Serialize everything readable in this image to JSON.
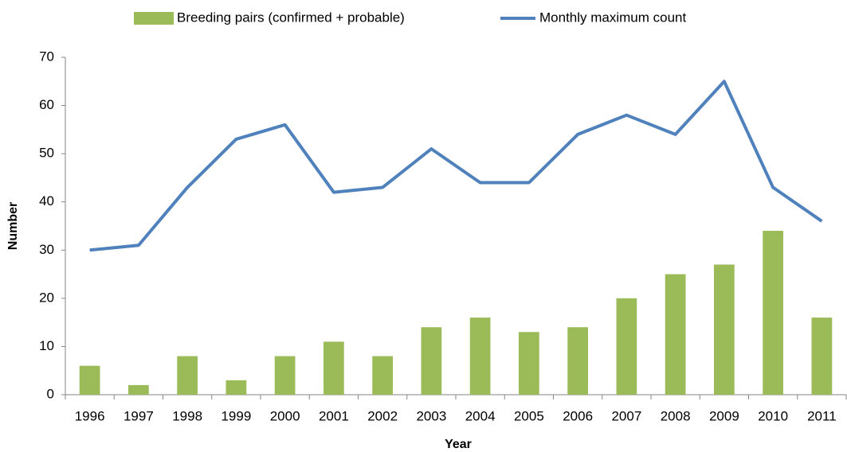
{
  "chart_data": {
    "type": "bar",
    "x_label": "Year",
    "y_label": "Number",
    "categories": [
      "1996",
      "1997",
      "1998",
      "1999",
      "2000",
      "2001",
      "2002",
      "2003",
      "2004",
      "2005",
      "2006",
      "2007",
      "2008",
      "2009",
      "2010",
      "2011"
    ],
    "series": [
      {
        "name": "Breeding pairs (confirmed + probable)",
        "type": "bar",
        "color": "#9bbb59",
        "values": [
          6,
          2,
          8,
          3,
          8,
          11,
          8,
          14,
          16,
          13,
          14,
          20,
          25,
          27,
          34,
          16
        ]
      },
      {
        "name": "Monthly maximum count",
        "type": "line",
        "color": "#4f81bd",
        "values": [
          30,
          31,
          43,
          53,
          56,
          42,
          43,
          51,
          44,
          44,
          54,
          58,
          54,
          65,
          43,
          36
        ]
      }
    ],
    "ylim": [
      0,
      70
    ],
    "yticks": [
      0,
      10,
      20,
      30,
      40,
      50,
      60,
      70
    ],
    "grid": false,
    "legend": "top"
  }
}
